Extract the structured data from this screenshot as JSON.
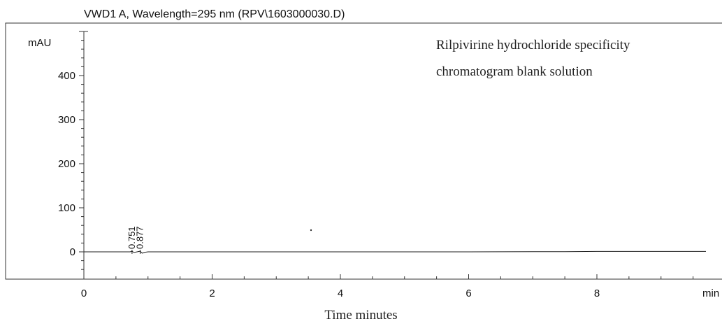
{
  "chart_data": {
    "type": "line",
    "title": "VWD1 A, Wavelength=295 nm (RPV\\1603000030.D)",
    "annotation": [
      "Rilpivirine hydrochloride specificity",
      "chromatogram blank solution"
    ],
    "ylabel": "mAU",
    "xlabel": "Time minutes",
    "x_unit_label": "min",
    "xlim": [
      0,
      9.7
    ],
    "ylim": [
      -55,
      520
    ],
    "xticks": [
      0,
      2,
      4,
      6,
      8
    ],
    "yticks": [
      0,
      100,
      200,
      300,
      400
    ],
    "peak_labels": [
      "0.751",
      "0.877"
    ],
    "series": [
      {
        "x": [
          0,
          0.55,
          0.72,
          0.751,
          0.78,
          0.83,
          0.877,
          0.91,
          0.95,
          1.0,
          2.0,
          4.0,
          6.0,
          7.5,
          8.0,
          9.7
        ],
        "y": [
          0,
          0,
          0,
          1.5,
          -1.5,
          0,
          1.5,
          -3,
          -1,
          0,
          0,
          0,
          0,
          0.5,
          1,
          1
        ]
      }
    ],
    "grid": false,
    "legend": "none"
  }
}
